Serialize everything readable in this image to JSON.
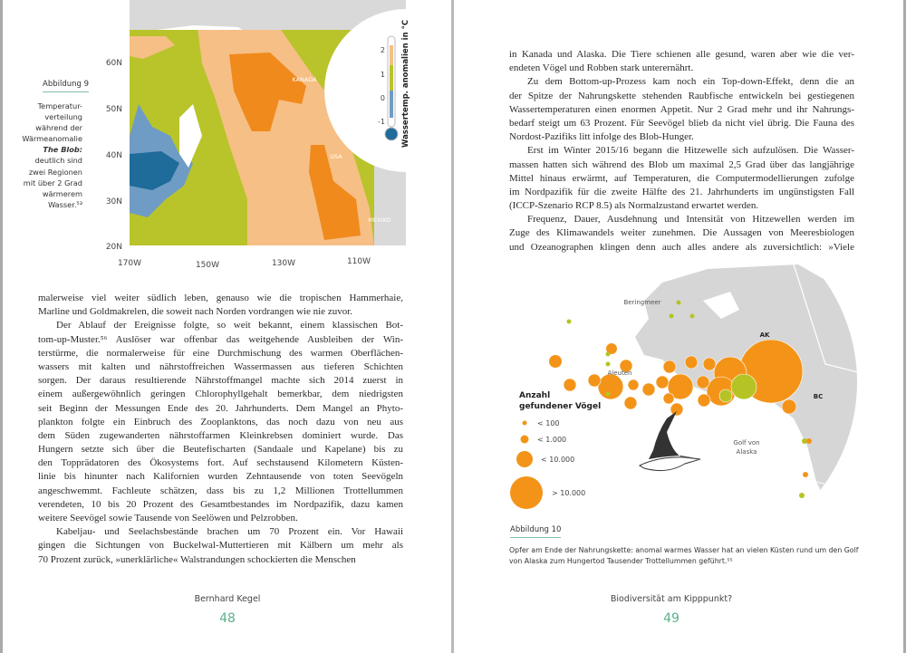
{
  "left_page": {
    "figure": {
      "label": "Abbildung 9",
      "caption_lines": [
        "Temperatur-",
        "verteilung",
        "während der",
        "Wärmeanomalie",
        "The Blob:",
        "deutlich sind",
        "zwei Regionen",
        "mit über 2 Grad",
        "wärmerem",
        "Wasser.⁵³"
      ],
      "lat_ticks": [
        "60N",
        "50N",
        "40N",
        "30N",
        "",
        "20N"
      ],
      "lon_ticks": [
        "170W",
        "",
        "150W",
        "",
        "130W",
        "",
        "110W"
      ],
      "regions": [
        "KANADA",
        "USA",
        "MEXIKO"
      ],
      "legend_title": "Wassertemp. anomalien in °C",
      "legend_ticks": [
        "2",
        "1",
        "0",
        "-1"
      ],
      "colors": {
        "cold_dark": "#1f6b9a",
        "cold": "#6f9cc4",
        "neutral": "#b8c42a",
        "warm": "#f6bf85",
        "hot": "#f08a1c",
        "land": "#d9d9d9"
      }
    },
    "body_lines": [
      "malerweise viel weiter südlich leben, genauso wie die tropischen Hammerhaie,",
      "Marline und Goldmakrelen, die soweit nach Norden vordrangen wie nie zuvor.",
      "Der Ablauf der Ereignisse folgte, so weit bekannt, einem klassischen Bot-",
      "tom-up-Muster.⁵⁶ Auslöser war offenbar das weitgehende Ausbleiben der Win-",
      "terstürme, die normalerweise für eine Durchmischung des warmen Oberflächen-",
      "wassers mit kalten und nährstoffreichen Wassermassen aus tieferen Schichten",
      "sorgen. Der daraus resultierende Nährstoffmangel machte sich 2014 zuerst in",
      "einem außergewöhnlich geringen Chlorophyllgehalt bemerkbar, dem niedrigsten",
      "seit Beginn der Messungen Ende des 20. Jahrhunderts. Dem Mangel an Phyto-",
      "plankton folgte ein Einbruch des Zooplanktons, das noch dazu von neu aus",
      "dem Süden zugewanderten nährstoffarmen Kleinkrebsen dominiert wurde. Das",
      "Hungern setzte sich über die Beutefischarten (Sandaale und Kapelane) bis zu",
      "den Topprädatoren des Ökosystems fort. Auf sechstausend Kilometern Küsten-",
      "linie bis hinunter nach Kalifornien wurden Zehntausende von toten Seevögeln",
      "angeschwemmt. Fachleute schätzen, dass bis zu 1,2 Millionen Trottellummen",
      "verendeten, 10 bis 20 Prozent des Gesamtbestandes im Nordpazifik, dazu kamen",
      "weitere Seevögel sowie Tausende von Seelöwen und Pelzrobben.",
      "Kabeljau- und Seelachsbestände brachen um 70 Prozent ein. Vor Hawaii",
      "gingen die Sichtungen von Buckelwal-Muttertieren mit Kälbern um mehr als",
      "70 Prozent zurück, »unerklärliche« Walstrandungen schockierten die Menschen"
    ],
    "footer": {
      "author": "Bernhard Kegel",
      "page_number": "48"
    }
  },
  "right_page": {
    "body_lines": [
      "in Kanada und Alaska. Die Tiere schienen alle gesund, waren aber wie die ver-",
      "endeten Vögel und Robben stark unterernährt.",
      "Zu dem Bottom-up-Prozess kam noch ein Top-down-Effekt, denn die an",
      "der Spitze der Nahrungskette stehenden Raubfische entwickeln bei gestiegenen",
      "Wassertemperaturen einen enormen Appetit. Nur 2 Grad mehr und ihr Nahrungs-",
      "bedarf steigt um 63 Prozent. Für Seevögel blieb da nicht viel übrig. Die Fauna des",
      "Nordost-Pazifiks litt infolge des Blob-Hunger.",
      "Erst im Winter 2015/16 begann die Hitzewelle sich aufzulösen. Die Wasser-",
      "massen hatten sich während des Blob um maximal 2,5 Grad über das langjährige",
      "Mittel hinaus erwärmt, auf Temperaturen, die Computermodellierungen zufolge",
      "im Nordpazifik für die zweite Hälfte des 21. Jahrhunderts im ungünstigsten Fall",
      "(ICCP-Szenario RCP 8.5) als Normalzustand erwartet werden.",
      "Frequenz, Dauer, Ausdehnung und Intensität von Hitzewellen werden im",
      "Zuge des Klimawandels weiter zunehmen. Die Aussagen von Meeresbiologen",
      "und Ozeanographen klingen denn auch alles andere als zuversichtlich: »Viele"
    ],
    "figure": {
      "label": "Abbildung 10",
      "caption_lines": [
        "Opfer am Ende der Nahrungskette: anomal warmes Wasser hat an vielen Küsten rund um den Golf",
        "von Alaska zum Hungertod Tausender Trottellummen geführt.⁵⁵"
      ],
      "map_labels": {
        "sea": "Beringmeer",
        "islands": "Aleuten",
        "gulf_1": "Golf von",
        "gulf_2": "Alaska",
        "ak": "AK",
        "bc": "BC"
      },
      "legend": {
        "title_1": "Anzahl",
        "title_2": "gefundener Vögel",
        "items": [
          "< 100",
          "< 1.000",
          "< 10.000",
          "> 10.000"
        ]
      },
      "colors": {
        "orange": "#f39419",
        "green": "#b5c424",
        "land": "#d6d6d6"
      }
    },
    "footer": {
      "title": "Biodiversität am Kipppunkt?",
      "page_number": "49"
    }
  }
}
